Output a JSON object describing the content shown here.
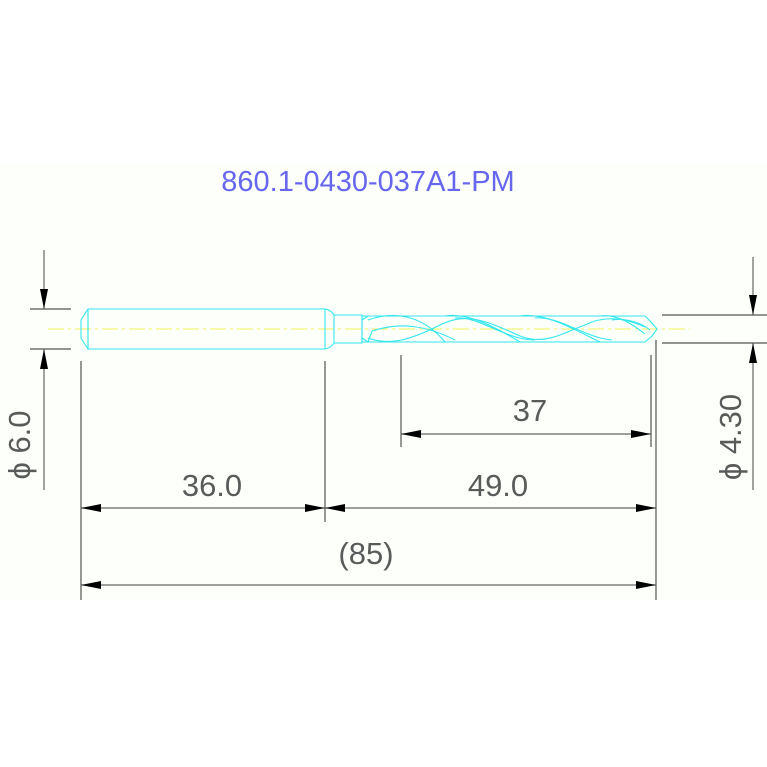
{
  "title": "860.1-0430-037A1-PM",
  "dimensions": {
    "shank_diameter": "ϕ 6.0",
    "drill_diameter": "ϕ 4.30",
    "flute_length": "37",
    "shank_length": "36.0",
    "body_length": "49.0",
    "overall_length": "(85)"
  },
  "colors": {
    "title": "#6666ee",
    "tool_outline": "#33e6ef",
    "centerline": "#f2f05a",
    "dimension": "#555555",
    "background": "#fcfffa"
  }
}
